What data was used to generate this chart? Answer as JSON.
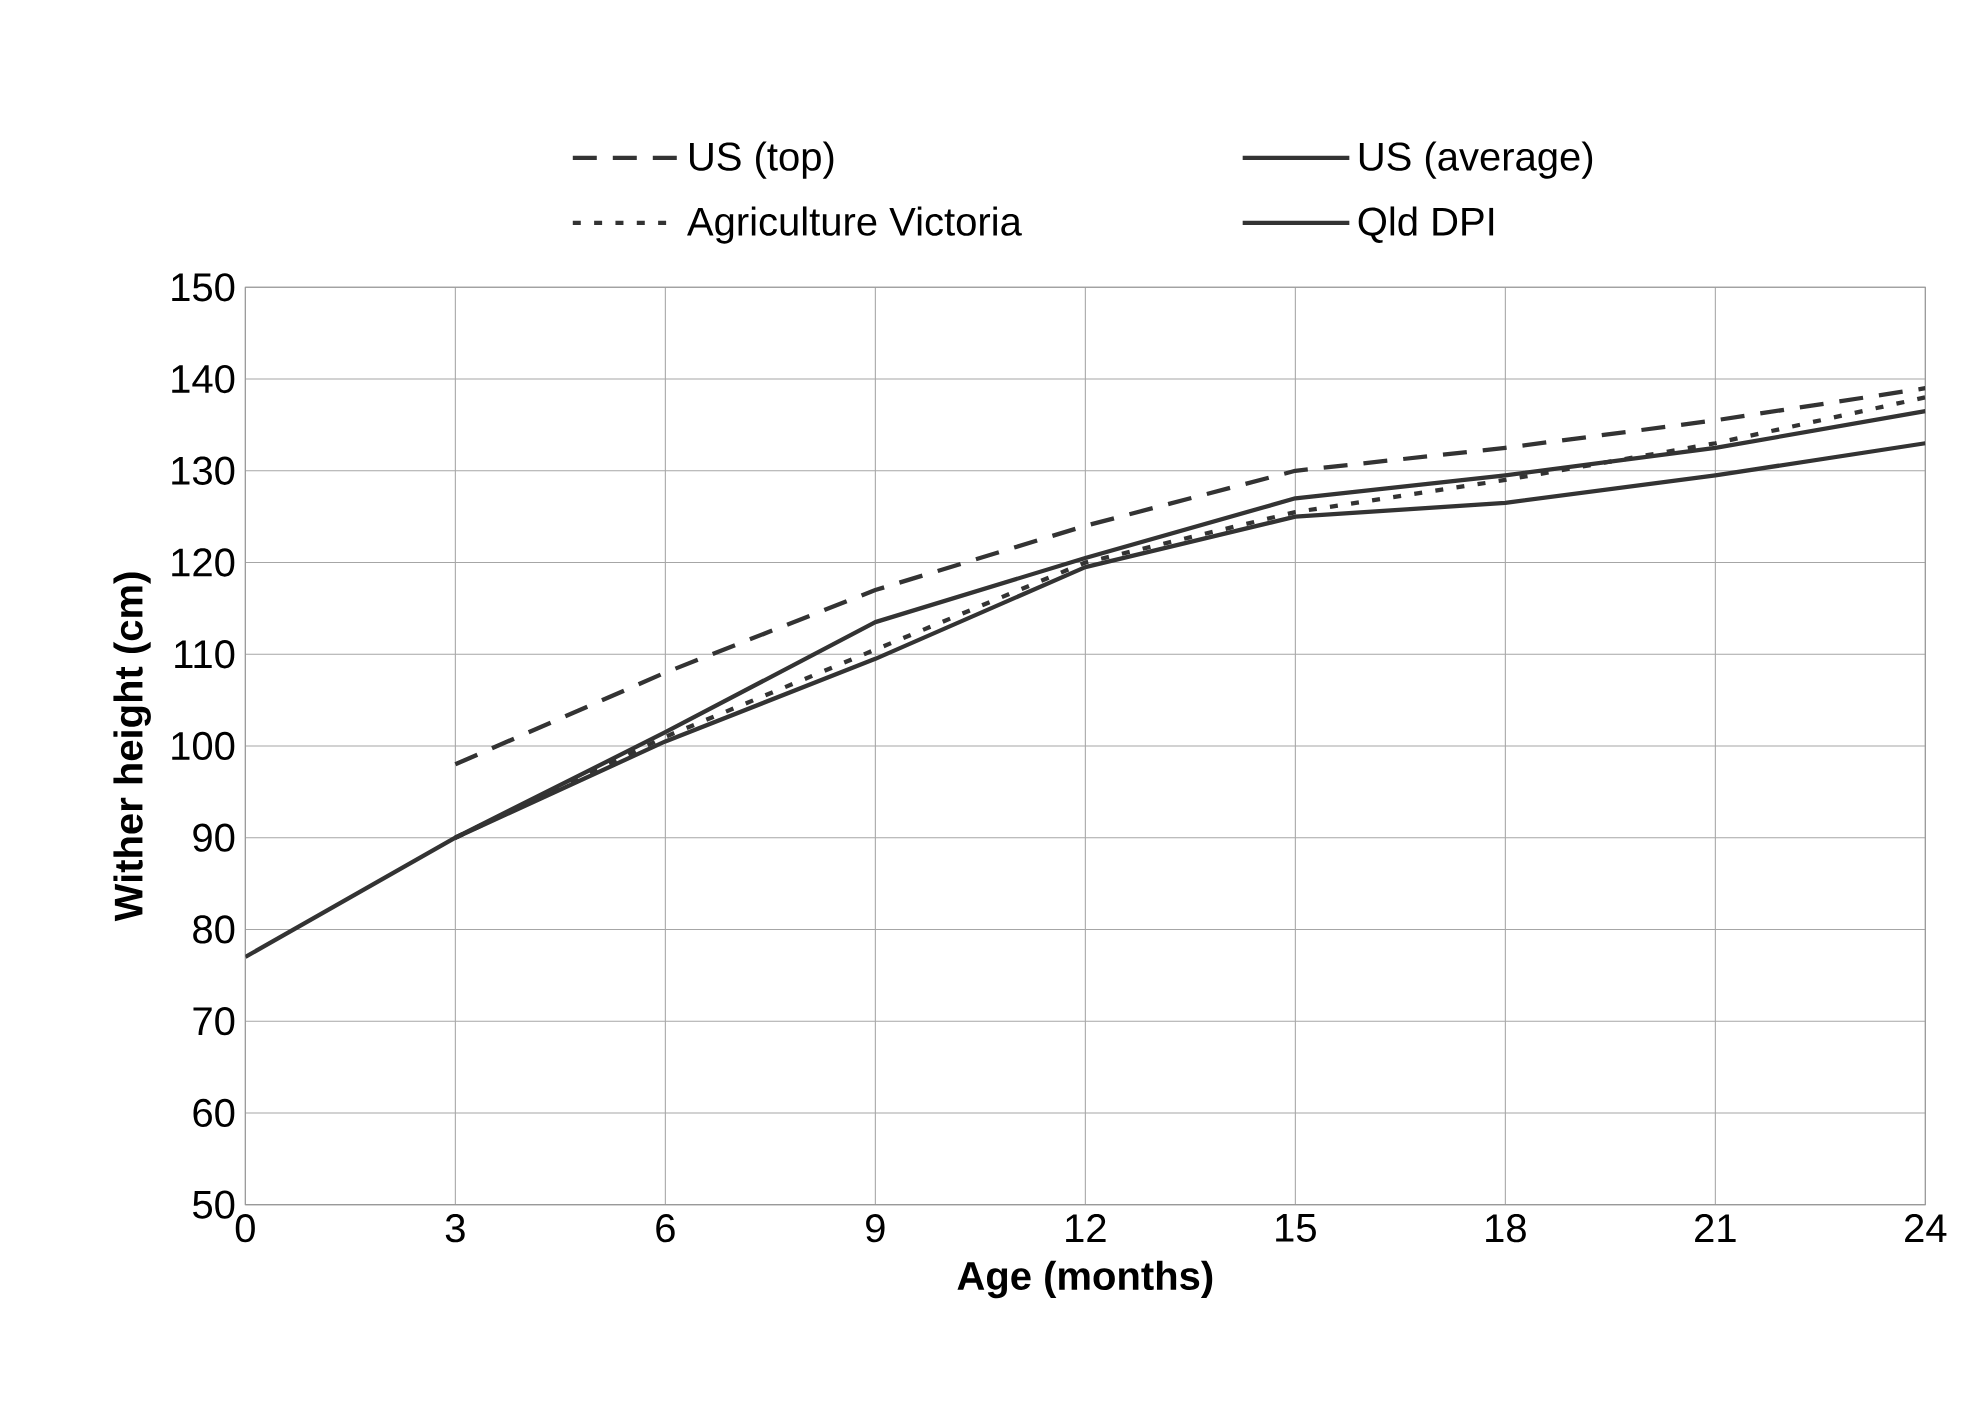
{
  "chart_data": {
    "type": "line",
    "xlabel": "Age (months)",
    "ylabel": "Wither height (cm)",
    "xlim": [
      0,
      24
    ],
    "ylim": [
      50,
      150
    ],
    "xticks": [
      0,
      3,
      6,
      9,
      12,
      15,
      18,
      21,
      24
    ],
    "yticks": [
      50,
      60,
      70,
      80,
      90,
      100,
      110,
      120,
      130,
      140,
      150
    ],
    "grid": true,
    "legend": "top",
    "marker": "none",
    "series": [
      {
        "name": "US (top)",
        "color": "#333333",
        "line_style": "dashed",
        "x": [
          3,
          6,
          9,
          12,
          15,
          18,
          21,
          24
        ],
        "values": [
          98,
          108,
          117,
          124,
          130,
          132.5,
          135.5,
          139
        ]
      },
      {
        "name": "US (average)",
        "color": "#333333",
        "line_style": "solid",
        "x": [
          3,
          6,
          9,
          12,
          15,
          18,
          21,
          24
        ],
        "values": [
          90,
          100.5,
          109.5,
          119.5,
          125,
          126.5,
          129.5,
          133
        ]
      },
      {
        "name": "Agriculture Victoria",
        "color": "#333333",
        "line_style": "dotted",
        "x": [
          3,
          6,
          9,
          12,
          15,
          18,
          21,
          24
        ],
        "values": [
          90,
          101,
          110.5,
          120,
          125.5,
          129,
          133,
          138
        ]
      },
      {
        "name": "Qld DPI",
        "color": "#333333",
        "line_style": "solid",
        "x": [
          0,
          3,
          6,
          9,
          12,
          15,
          18,
          21,
          24
        ],
        "values": [
          77,
          90,
          101.5,
          113.5,
          120.5,
          127,
          129.5,
          132.5,
          136.5
        ]
      }
    ]
  }
}
